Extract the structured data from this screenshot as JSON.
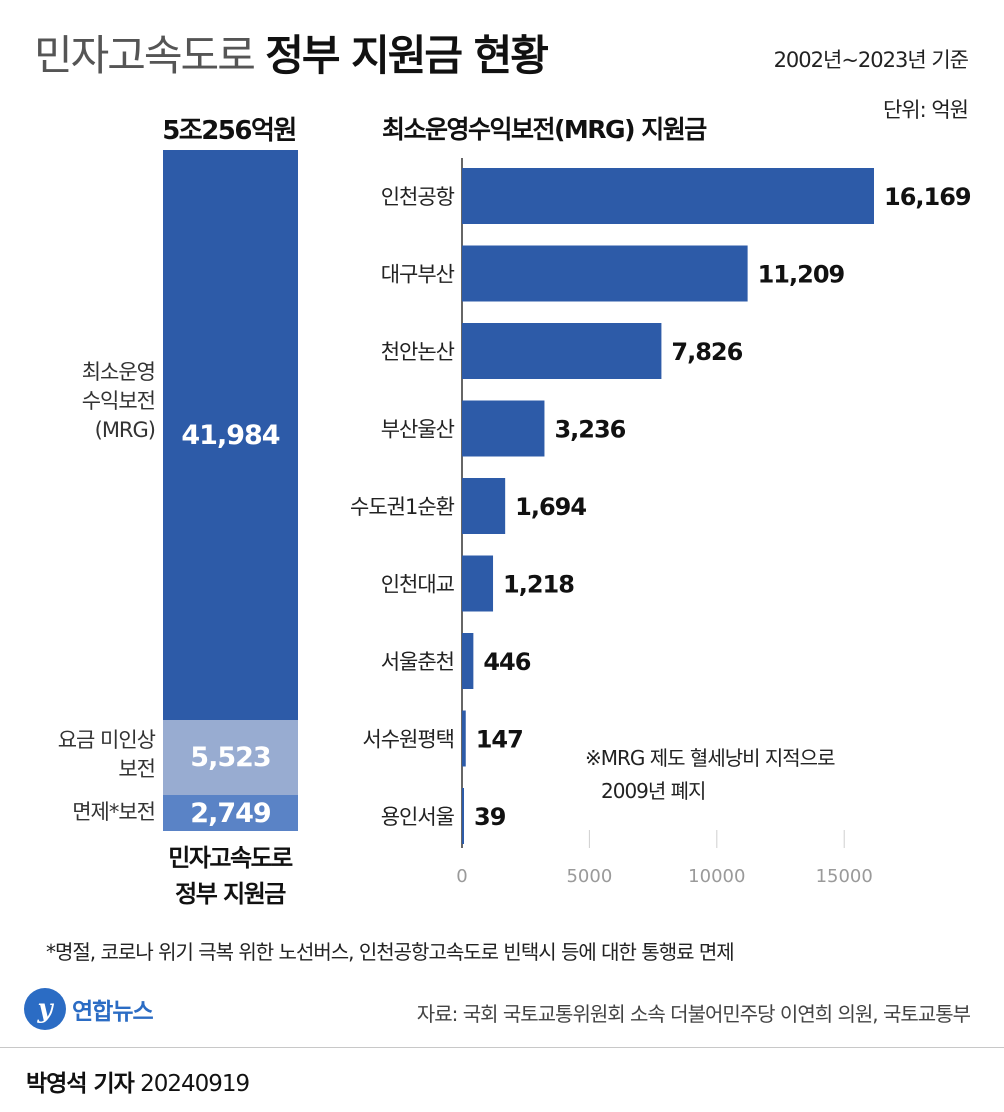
{
  "header": {
    "title_light": "민자고속도로",
    "title_bold": "정부 지원금 현황",
    "period": "2002년~2023년 기준",
    "unit": "단위: 억원"
  },
  "stack": {
    "total_label": "5조256억원",
    "segments": [
      {
        "name": "mrg",
        "label_lines": [
          "최소운영",
          "수익보전",
          "(MRG)"
        ],
        "value_text": "41,984",
        "value": 41984,
        "color": "#2d5ba8"
      },
      {
        "name": "toll",
        "label_lines": [
          "요금 미인상",
          "보전"
        ],
        "value_text": "5,523",
        "value": 5523,
        "color": "#98acd1"
      },
      {
        "name": "exempt",
        "label_lines": [
          "면제*보전"
        ],
        "value_text": "2,749",
        "value": 2749,
        "color": "#5a83c6"
      }
    ],
    "caption_lines": [
      "민자고속도로",
      "정부 지원금"
    ]
  },
  "chart_data": {
    "type": "bar",
    "orientation": "horizontal",
    "title": "최소운영수익보전(MRG) 지원금",
    "categories": [
      "인천공항",
      "대구부산",
      "천안논산",
      "부산울산",
      "수도권1순환",
      "인천대교",
      "서울춘천",
      "서수원평택",
      "용인서울"
    ],
    "values": [
      16169,
      11209,
      7826,
      3236,
      1694,
      1218,
      446,
      147,
      39
    ],
    "value_labels": [
      "16,169",
      "11,209",
      "7,826",
      "3,236",
      "1,694",
      "1,218",
      "446",
      "147",
      "39"
    ],
    "xlim": [
      0,
      17000
    ],
    "xticks": [
      0,
      5000,
      10000,
      15000
    ],
    "xtick_labels": [
      "0",
      "5000",
      "10000",
      "15000"
    ],
    "bar_color": "#2d5ba8",
    "note_lines": [
      "※MRG 제도 혈세낭비 지적으로",
      "2009년 폐지"
    ]
  },
  "footer": {
    "footnote": "*명절, 코로나 위기 극복 위한 노선버스, 인천공항고속도로 빈택시 등에 대한 통행료 면제",
    "logo_text": "연합뉴스",
    "source": "자료: 국회 국토교통위원회 소속 더불어민주당 이연희 의원, 국토교통부",
    "reporter": "박영석 기자",
    "date": "20240919"
  }
}
